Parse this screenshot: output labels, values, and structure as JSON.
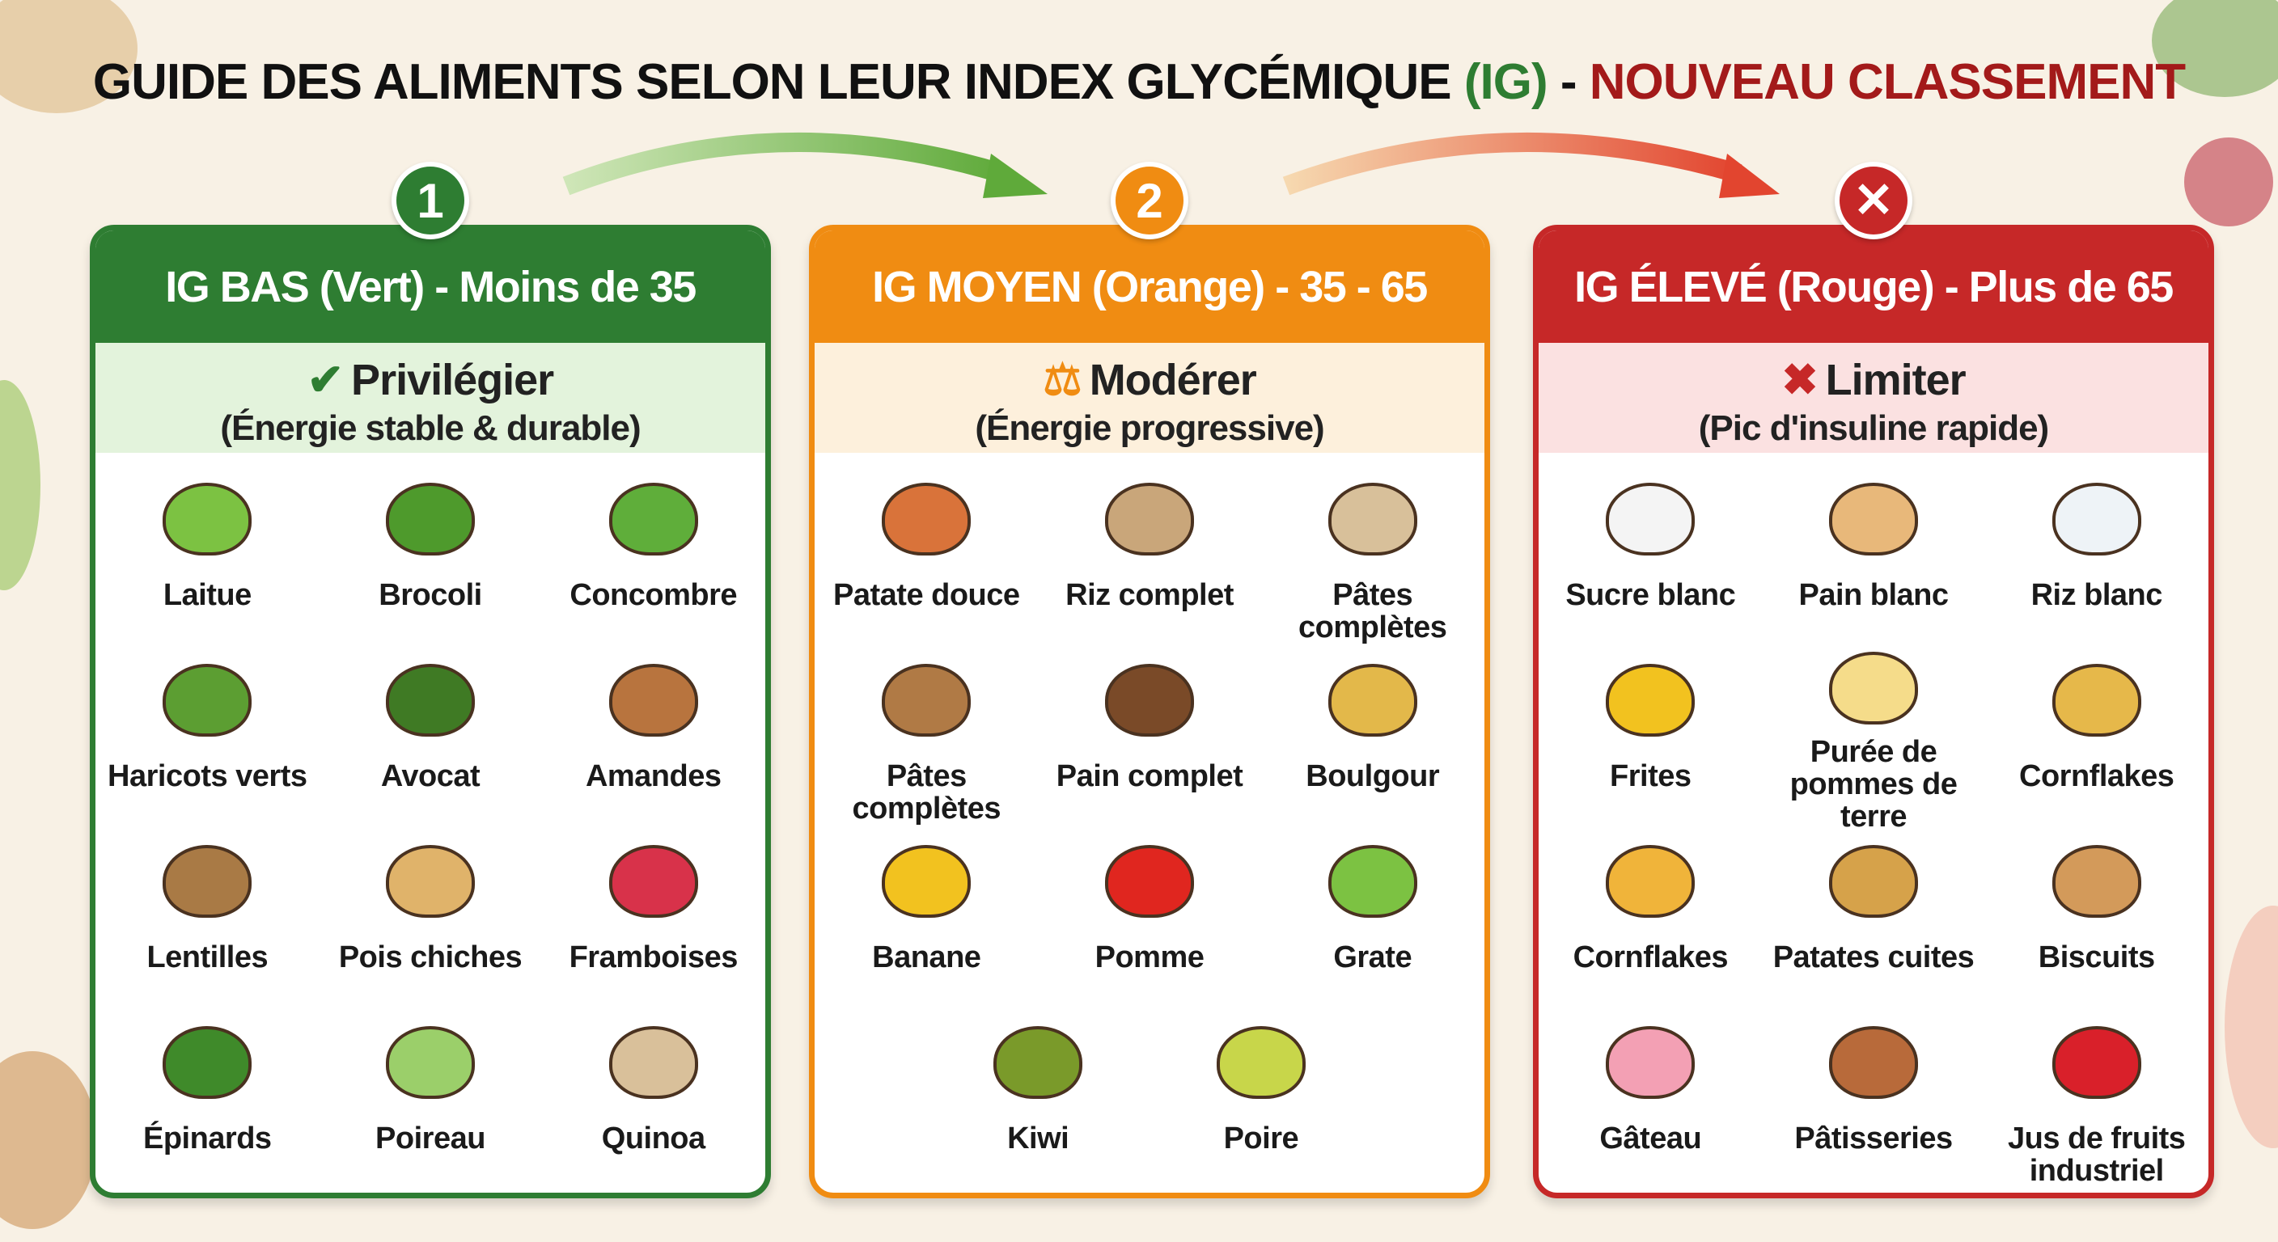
{
  "title": {
    "part1": "GUIDE DES ALIMENTS SELON LEUR INDEX GLYCÉMIQUE ",
    "part2": "(IG)",
    "part3": " - ",
    "part4": "NOUVEAU CLASSEMENT"
  },
  "colors": {
    "green": "#2e7d32",
    "orange": "#f08c12",
    "red": "#c62828",
    "green_light": "#e3f3dc",
    "orange_light": "#fdf0dc",
    "red_light": "#fbe1e1",
    "background": "#f8f1e5"
  },
  "panels": [
    {
      "badge": "1",
      "header": "IG BAS (Vert) - Moins de 35",
      "action_icon": "check-icon",
      "action_symbol": "✔",
      "action": "Privilégier",
      "note": "(Énergie stable & durable)",
      "items": [
        {
          "label": "Laitue",
          "color": "#7cc242"
        },
        {
          "label": "Brocoli",
          "color": "#4e9a2c"
        },
        {
          "label": "Concombre",
          "color": "#5fae3a"
        },
        {
          "label": "Haricots verts",
          "color": "#5c9e32"
        },
        {
          "label": "Avocat",
          "color": "#3f7a24"
        },
        {
          "label": "Amandes",
          "color": "#b8743e"
        },
        {
          "label": "Lentilles",
          "color": "#a97a45"
        },
        {
          "label": "Pois chiches",
          "color": "#e0b36a"
        },
        {
          "label": "Framboises",
          "color": "#d8324a"
        },
        {
          "label": "Épinards",
          "color": "#3f8a2a"
        },
        {
          "label": "Poireau",
          "color": "#9bcf6a"
        },
        {
          "label": "Quinoa",
          "color": "#d9c09a"
        }
      ]
    },
    {
      "badge": "2",
      "header": "IG MOYEN (Orange) - 35 - 65",
      "action_icon": "scale-icon",
      "action_symbol": "⚖",
      "action": "Modérer",
      "note": "(Énergie progressive)",
      "items": [
        {
          "label": "Patate douce",
          "color": "#d9733a"
        },
        {
          "label": "Riz complet",
          "color": "#c9a67a"
        },
        {
          "label": "Pâtes complètes",
          "color": "#d8c09a"
        },
        {
          "label": "Pâtes complètes",
          "color": "#b07a45"
        },
        {
          "label": "Pain complet",
          "color": "#7a4a28"
        },
        {
          "label": "Boulgour",
          "color": "#e3b84a"
        },
        {
          "label": "Banane",
          "color": "#f2c21f"
        },
        {
          "label": "Pomme",
          "color": "#e0261f"
        },
        {
          "label": "Grate",
          "color": "#7cc242"
        },
        {
          "label": "Kiwi",
          "color": "#7a9a2a"
        },
        {
          "label": "Poire",
          "color": "#c8d64a"
        }
      ]
    },
    {
      "badge": "✕",
      "header": "IG ÉLEVÉ (Rouge) - Plus de 65",
      "action_icon": "cross-icon",
      "action_symbol": "✖",
      "action": "Limiter",
      "note": "(Pic d'insuline rapide)",
      "items": [
        {
          "label": "Sucre blanc",
          "color": "#f4f4f4"
        },
        {
          "label": "Pain blanc",
          "color": "#e8b87a"
        },
        {
          "label": "Riz blanc",
          "color": "#eef3f7"
        },
        {
          "label": "Frites",
          "color": "#f2c21f"
        },
        {
          "label": "Purée de pommes de terre",
          "color": "#f5dc8a"
        },
        {
          "label": "Cornflakes",
          "color": "#e6b84a"
        },
        {
          "label": "Cornflakes",
          "color": "#f0b43a"
        },
        {
          "label": "Patates cuites",
          "color": "#d6a24a"
        },
        {
          "label": "Biscuits",
          "color": "#d39a5a"
        },
        {
          "label": "Gâteau",
          "color": "#f3a0b4"
        },
        {
          "label": "Pâtisseries",
          "color": "#b86a3a"
        },
        {
          "label": "Jus de fruits industriel",
          "color": "#d9202a"
        }
      ]
    }
  ]
}
